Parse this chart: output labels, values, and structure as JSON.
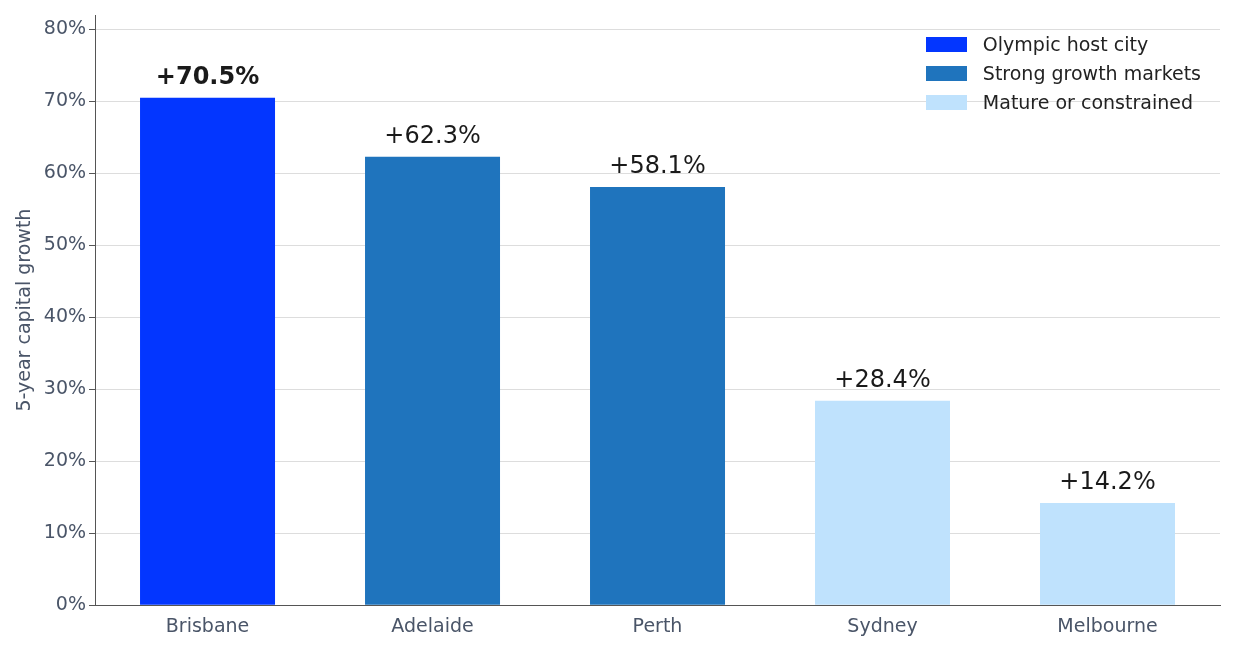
{
  "chart_data": {
    "type": "bar",
    "ylabel": "5-year capital growth",
    "categories": [
      "Brisbane",
      "Adelaide",
      "Perth",
      "Sydney",
      "Melbourne"
    ],
    "stacked": true,
    "series": [
      {
        "name": "Olympic host city",
        "color": "#0336ff",
        "values": [
          70.5,
          null,
          null,
          null,
          null
        ],
        "value_labels": [
          "+70.5%",
          null,
          null,
          null,
          null
        ]
      },
      {
        "name": "Strong growth markets",
        "color": "#1f74bd",
        "values": [
          null,
          62.3,
          58.1,
          null,
          null
        ],
        "value_labels": [
          null,
          "+62.3%",
          "+58.1%",
          null,
          null
        ]
      },
      {
        "name": "Mature or constrained",
        "color": "#bfe2fd",
        "values": [
          null,
          null,
          null,
          28.4,
          14.2
        ],
        "value_labels": [
          null,
          null,
          null,
          "+28.4%",
          "+14.2%"
        ]
      }
    ],
    "ylim": [
      0,
      82
    ],
    "yticks": [
      {
        "value": 0,
        "label": "0%"
      },
      {
        "value": 10,
        "label": "10%"
      },
      {
        "value": 20,
        "label": "20%"
      },
      {
        "value": 30,
        "label": "30%"
      },
      {
        "value": 40,
        "label": "40%"
      },
      {
        "value": 50,
        "label": "50%"
      },
      {
        "value": 60,
        "label": "60%"
      },
      {
        "value": 70,
        "label": "70%"
      },
      {
        "value": 80,
        "label": "80%"
      }
    ],
    "grid": "y",
    "legend": "top right"
  }
}
